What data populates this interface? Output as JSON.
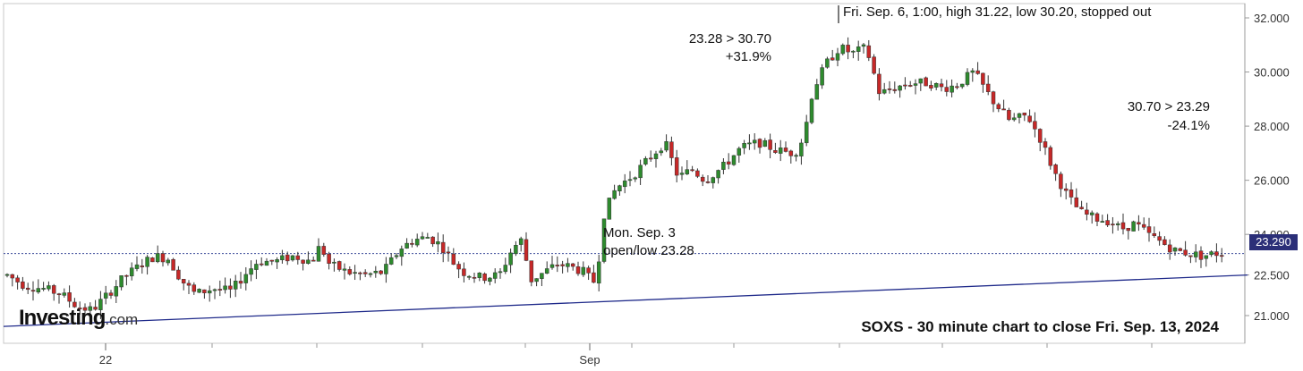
{
  "chart_data": {
    "type": "candlestick",
    "title": "SOXS - 30 minute chart to close Fri. Sep. 13, 2024",
    "x_ticks": [
      "22",
      "Sep"
    ],
    "y_ticks": [
      "21.000",
      "22.500",
      "24.000",
      "26.000",
      "28.000",
      "30.000",
      "32.000"
    ],
    "ylim": [
      20.0,
      32.6
    ],
    "last_price": "23.290",
    "last_price_value": 23.29,
    "colors": {
      "up": "#2e8b2e",
      "down": "#c62828",
      "trendline": "#1f2a8a",
      "price_line": "#3a4a9a",
      "axis": "#999999"
    },
    "trendline": [
      [
        0,
        20.6
      ],
      [
        1380,
        22.5
      ]
    ],
    "annotations": {
      "high_note": "Fri. Sep. 6, 1:00, high 31.22, low 30.20, stopped out",
      "rise_range": "23.28 > 30.70",
      "rise_pct": "+31.9%",
      "fall_range": "30.70 > 23.29",
      "fall_pct": "-24.1%",
      "open_day": "Mon. Sep. 3",
      "open_low": "open/low 23.28"
    },
    "anchors": [
      [
        0,
        22.5
      ],
      [
        20,
        22.1
      ],
      [
        40,
        22.0
      ],
      [
        60,
        21.8
      ],
      [
        80,
        21.3
      ],
      [
        95,
        21.2
      ],
      [
        110,
        21.7
      ],
      [
        130,
        22.4
      ],
      [
        150,
        22.9
      ],
      [
        165,
        23.2
      ],
      [
        180,
        23.1
      ],
      [
        195,
        22.3
      ],
      [
        210,
        21.8
      ],
      [
        230,
        22.0
      ],
      [
        250,
        21.9
      ],
      [
        265,
        22.5
      ],
      [
        280,
        23.0
      ],
      [
        300,
        23.0
      ],
      [
        320,
        23.2
      ],
      [
        340,
        23.0
      ],
      [
        350,
        23.6
      ],
      [
        360,
        22.9
      ],
      [
        380,
        22.6
      ],
      [
        400,
        22.5
      ],
      [
        420,
        22.6
      ],
      [
        440,
        23.5
      ],
      [
        455,
        23.8
      ],
      [
        470,
        23.9
      ],
      [
        485,
        23.6
      ],
      [
        500,
        22.9
      ],
      [
        510,
        22.6
      ],
      [
        530,
        22.4
      ],
      [
        550,
        22.5
      ],
      [
        565,
        23.5
      ],
      [
        575,
        23.8
      ],
      [
        585,
        22.3
      ],
      [
        600,
        22.6
      ],
      [
        615,
        22.9
      ],
      [
        630,
        22.8
      ],
      [
        645,
        22.6
      ],
      [
        655,
        22.2
      ],
      [
        662,
        23.28
      ],
      [
        665,
        24.6
      ],
      [
        680,
        25.7
      ],
      [
        700,
        26.2
      ],
      [
        720,
        26.9
      ],
      [
        735,
        27.4
      ],
      [
        750,
        26.1
      ],
      [
        765,
        26.4
      ],
      [
        780,
        26.0
      ],
      [
        800,
        26.5
      ],
      [
        820,
        27.2
      ],
      [
        840,
        27.4
      ],
      [
        860,
        27.1
      ],
      [
        880,
        27.0
      ],
      [
        890,
        27.6
      ],
      [
        900,
        29.3
      ],
      [
        915,
        30.3
      ],
      [
        930,
        30.9
      ],
      [
        945,
        30.7
      ],
      [
        960,
        30.9
      ],
      [
        975,
        29.2
      ],
      [
        990,
        29.4
      ],
      [
        1010,
        29.6
      ],
      [
        1030,
        29.6
      ],
      [
        1045,
        29.4
      ],
      [
        1060,
        29.5
      ],
      [
        1080,
        30.0
      ],
      [
        1100,
        29.0
      ],
      [
        1120,
        28.2
      ],
      [
        1140,
        28.4
      ],
      [
        1155,
        27.5
      ],
      [
        1170,
        26.3
      ],
      [
        1185,
        25.4
      ],
      [
        1200,
        24.8
      ],
      [
        1215,
        24.6
      ],
      [
        1230,
        24.5
      ],
      [
        1245,
        24.2
      ],
      [
        1260,
        24.4
      ],
      [
        1275,
        24.0
      ],
      [
        1290,
        23.7
      ],
      [
        1305,
        23.4
      ],
      [
        1320,
        23.3
      ],
      [
        1335,
        23.2
      ],
      [
        1350,
        23.3
      ],
      [
        1360,
        23.29
      ]
    ]
  }
}
